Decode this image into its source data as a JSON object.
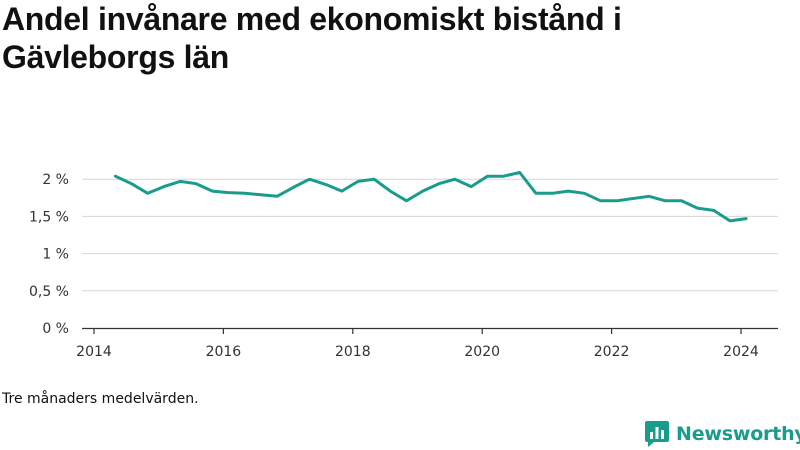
{
  "title": "Andel invånare med ekonomiskt bistånd i Gävleborgs län",
  "caption": "Tre månaders medelvärden.",
  "brand": {
    "name": "Newsworthy",
    "color": "#1a9c8c"
  },
  "chart_data": {
    "type": "line",
    "title": "Andel invånare med ekonomiskt bistånd i Gävleborgs län",
    "xlabel": "",
    "ylabel": "",
    "xlim": [
      2014,
      2024.6
    ],
    "ylim": [
      0,
      0.025
    ],
    "x_ticks": [
      {
        "value": 2014,
        "label": "2014"
      },
      {
        "value": 2016,
        "label": "2016"
      },
      {
        "value": 2018,
        "label": "2018"
      },
      {
        "value": 2020,
        "label": "2020"
      },
      {
        "value": 2022,
        "label": "2022"
      },
      {
        "value": 2024,
        "label": "2024"
      }
    ],
    "y_ticks": [
      {
        "value": 0,
        "label": "0 %"
      },
      {
        "value": 0.005,
        "label": "0,5 %"
      },
      {
        "value": 0.01,
        "label": "1 %"
      },
      {
        "value": 0.015,
        "label": "1,5 %"
      },
      {
        "value": 0.02,
        "label": "2 %"
      }
    ],
    "grid": true,
    "line_color": "#1a9c8c",
    "series": [
      {
        "name": "",
        "x": [
          2014.33,
          2014.58,
          2014.83,
          2015.08,
          2015.33,
          2015.58,
          2015.83,
          2016.08,
          2016.33,
          2016.58,
          2016.83,
          2017.08,
          2017.33,
          2017.58,
          2017.83,
          2018.08,
          2018.33,
          2018.58,
          2018.83,
          2019.08,
          2019.33,
          2019.58,
          2019.83,
          2020.08,
          2020.33,
          2020.58,
          2020.83,
          2021.08,
          2021.33,
          2021.58,
          2021.83,
          2022.08,
          2022.33,
          2022.58,
          2022.83,
          2023.08,
          2023.33,
          2023.58,
          2023.83,
          2024.08
        ],
        "values": [
          0.0204,
          0.0194,
          0.0181,
          0.019,
          0.0197,
          0.0194,
          0.0184,
          0.0182,
          0.0181,
          0.0179,
          0.0177,
          0.0189,
          0.02,
          0.0193,
          0.0184,
          0.0197,
          0.02,
          0.0184,
          0.0171,
          0.0184,
          0.0194,
          0.02,
          0.019,
          0.0204,
          0.0204,
          0.0209,
          0.0181,
          0.0181,
          0.0184,
          0.0181,
          0.0171,
          0.0171,
          0.0174,
          0.0177,
          0.0171,
          0.0171,
          0.0161,
          0.0158,
          0.0144,
          0.0147
        ]
      }
    ]
  }
}
